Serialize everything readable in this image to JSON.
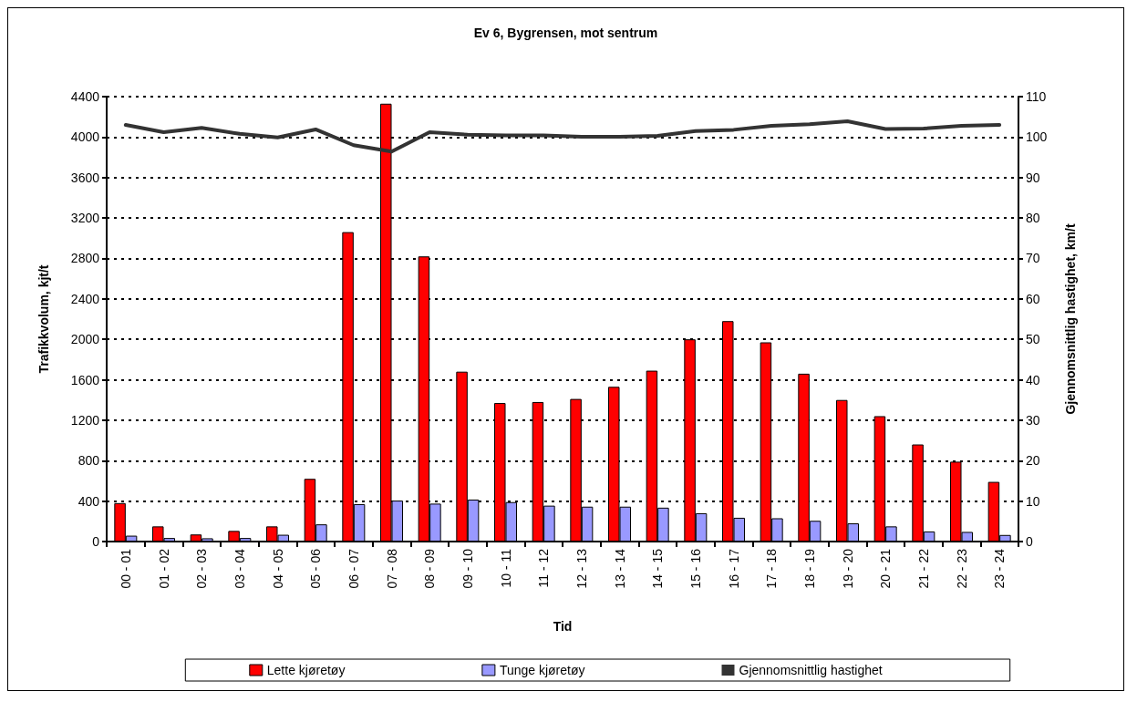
{
  "chart_data": {
    "type": "bar",
    "title": "Ev 6, Bygrensen, mot sentrum",
    "xlabel": "Tid",
    "ylabel": "Trafikkvolum, kjt/t",
    "y2label": "Gjennomsnittlig hastighet, km/t",
    "categories": [
      "00 - 01",
      "01 - 02",
      "02 - 03",
      "03 - 04",
      "04 - 05",
      "05 - 06",
      "06 - 07",
      "07 - 08",
      "08 - 09",
      "09 - 10",
      "10 - 11",
      "11 - 12",
      "12 - 13",
      "13 - 14",
      "14 - 15",
      "15 - 16",
      "16 - 17",
      "17 - 18",
      "18 - 19",
      "19 - 20",
      "20 - 21",
      "21 - 22",
      "22 - 23",
      "23 - 24"
    ],
    "series": [
      {
        "name": "Lette kjøretøy",
        "color": "#ff0000",
        "values": [
          380,
          150,
          70,
          105,
          150,
          620,
          3060,
          4330,
          2820,
          1680,
          1370,
          1380,
          1410,
          1530,
          1690,
          2000,
          2180,
          1970,
          1660,
          1400,
          1240,
          960,
          790,
          590
        ]
      },
      {
        "name": "Tunge kjøretøy",
        "color": "#9999ff",
        "values": [
          58,
          35,
          32,
          35,
          67,
          170,
          370,
          405,
          375,
          415,
          390,
          355,
          345,
          345,
          335,
          280,
          235,
          230,
          205,
          180,
          150,
          100,
          95,
          65
        ]
      },
      {
        "name": "Gjennomsnittlig hastighet",
        "type": "line",
        "axis": "y2",
        "color": "#333333",
        "values": [
          103.0,
          101.2,
          102.3,
          100.8,
          99.9,
          101.9,
          98.0,
          96.4,
          101.2,
          100.6,
          100.4,
          100.4,
          100.1,
          100.1,
          100.3,
          101.5,
          101.8,
          102.8,
          103.2,
          103.9,
          102.0,
          102.1,
          102.8,
          103.0
        ]
      }
    ],
    "ylim": [
      0,
      4400
    ],
    "yticks": [
      0,
      400,
      800,
      1200,
      1600,
      2000,
      2400,
      2800,
      3200,
      3600,
      4000,
      4400
    ],
    "y2lim": [
      0,
      110
    ],
    "y2ticks": [
      0,
      10,
      20,
      30,
      40,
      50,
      60,
      70,
      80,
      90,
      100,
      110
    ],
    "grid": "y",
    "legend": "bottom",
    "marker": "none",
    "line_style": "solid"
  }
}
